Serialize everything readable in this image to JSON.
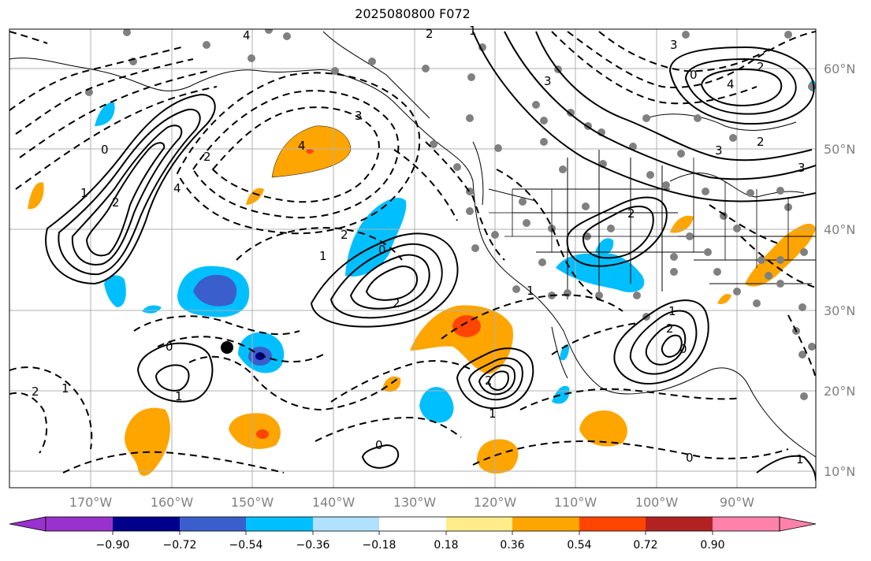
{
  "title": "2025080800 F072",
  "lon_labels": [
    "170°W",
    "160°W",
    "150°W",
    "140°W",
    "130°W",
    "120°W",
    "110°W",
    "100°W",
    "90°W"
  ],
  "lat_labels": [
    "60°N",
    "50°N",
    "40°N",
    "30°N",
    "20°N",
    "10°N"
  ],
  "colorbar": {
    "ticks": [
      "−0.90",
      "−0.72",
      "−0.54",
      "−0.36",
      "−0.18",
      "0.18",
      "0.36",
      "0.54",
      "0.72",
      "0.90"
    ],
    "colors": [
      "#9932cc",
      "#00008b",
      "#3a5fcd",
      "#00bfff",
      "#b0e2ff",
      "#ffffff",
      "#ffec8b",
      "#ffa500",
      "#ff4500",
      "#b22222",
      "#ff82ab"
    ]
  },
  "contour_labels": [
    "4",
    "2",
    "1",
    "0",
    "2",
    "4",
    "3",
    "2",
    "1",
    "0",
    "4",
    "2",
    "3",
    "1",
    "0",
    "3",
    "4",
    "3",
    "2",
    "2",
    "2",
    "1",
    "1",
    "0",
    "2",
    "1",
    "0",
    "2",
    "0",
    "1",
    "0",
    "1",
    "2",
    "3",
    "2",
    "1"
  ],
  "map_colors": {
    "grid": "#b0b0b0",
    "land_line": "#000000",
    "dots": "#808080",
    "positive": "#ffa500",
    "negative": "#00bfff"
  }
}
